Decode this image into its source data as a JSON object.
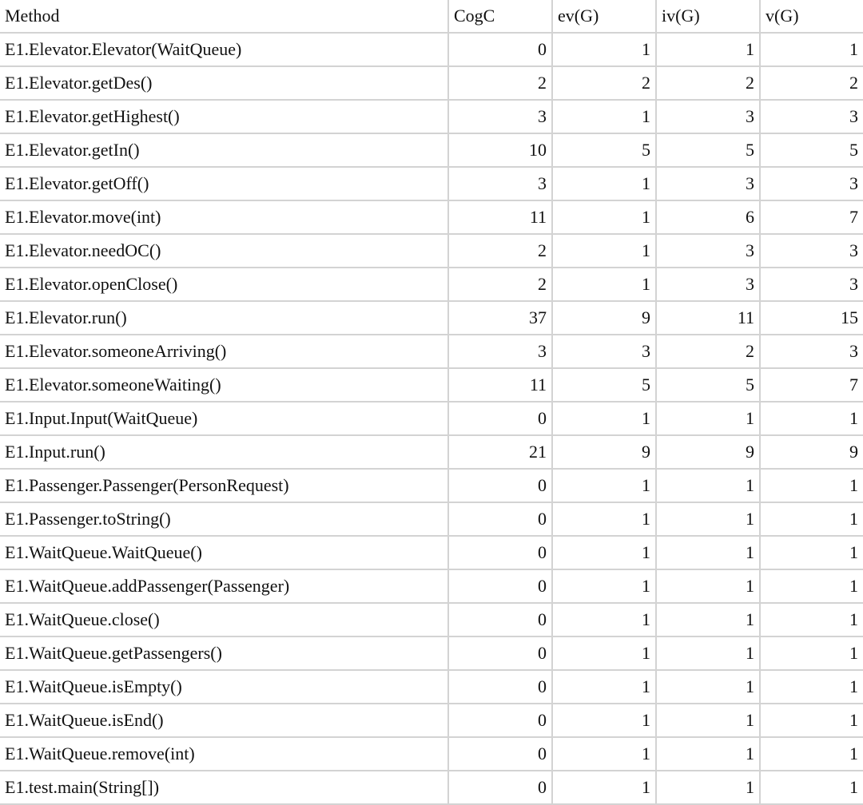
{
  "headers": [
    "Method",
    "CogC",
    "ev(G)",
    "iv(G)",
    "v(G)"
  ],
  "rows": [
    [
      "E1.Elevator.Elevator(WaitQueue)",
      "0",
      "1",
      "1",
      "1"
    ],
    [
      "E1.Elevator.getDes()",
      "2",
      "2",
      "2",
      "2"
    ],
    [
      "E1.Elevator.getHighest()",
      "3",
      "1",
      "3",
      "3"
    ],
    [
      "E1.Elevator.getIn()",
      "10",
      "5",
      "5",
      "5"
    ],
    [
      "E1.Elevator.getOff()",
      "3",
      "1",
      "3",
      "3"
    ],
    [
      "E1.Elevator.move(int)",
      "11",
      "1",
      "6",
      "7"
    ],
    [
      "E1.Elevator.needOC()",
      "2",
      "1",
      "3",
      "3"
    ],
    [
      "E1.Elevator.openClose()",
      "2",
      "1",
      "3",
      "3"
    ],
    [
      "E1.Elevator.run()",
      "37",
      "9",
      "11",
      "15"
    ],
    [
      "E1.Elevator.someoneArriving()",
      "3",
      "3",
      "2",
      "3"
    ],
    [
      "E1.Elevator.someoneWaiting()",
      "11",
      "5",
      "5",
      "7"
    ],
    [
      "E1.Input.Input(WaitQueue)",
      "0",
      "1",
      "1",
      "1"
    ],
    [
      "E1.Input.run()",
      "21",
      "9",
      "9",
      "9"
    ],
    [
      "E1.Passenger.Passenger(PersonRequest)",
      "0",
      "1",
      "1",
      "1"
    ],
    [
      "E1.Passenger.toString()",
      "0",
      "1",
      "1",
      "1"
    ],
    [
      "E1.WaitQueue.WaitQueue()",
      "0",
      "1",
      "1",
      "1"
    ],
    [
      "E1.WaitQueue.addPassenger(Passenger)",
      "0",
      "1",
      "1",
      "1"
    ],
    [
      "E1.WaitQueue.close()",
      "0",
      "1",
      "1",
      "1"
    ],
    [
      "E1.WaitQueue.getPassengers()",
      "0",
      "1",
      "1",
      "1"
    ],
    [
      "E1.WaitQueue.isEmpty()",
      "0",
      "1",
      "1",
      "1"
    ],
    [
      "E1.WaitQueue.isEnd()",
      "0",
      "1",
      "1",
      "1"
    ],
    [
      "E1.WaitQueue.remove(int)",
      "0",
      "1",
      "1",
      "1"
    ],
    [
      "E1.test.main(String[])",
      "0",
      "1",
      "1",
      "1"
    ]
  ]
}
